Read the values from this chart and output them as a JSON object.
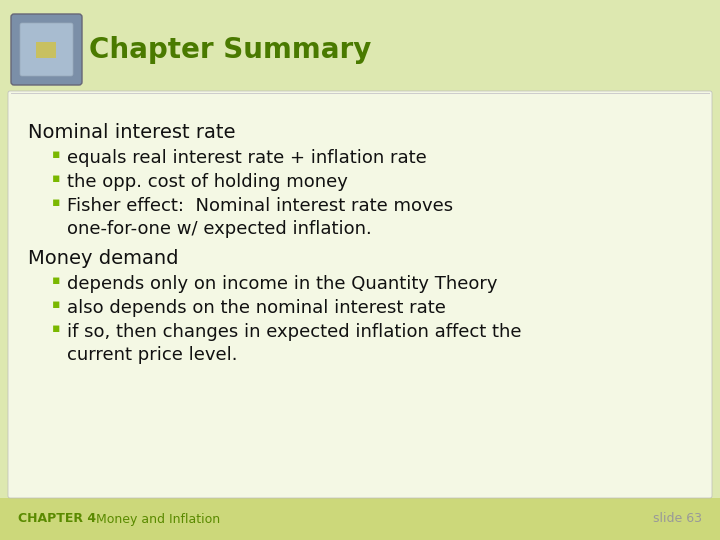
{
  "bg_color": "#dde8b0",
  "content_box_color": "#f4f8e4",
  "title_text": "Chapter Summary",
  "title_color": "#4a7a00",
  "title_fontsize": 20,
  "footer_bg_color": "#ccd87a",
  "footer_left_text": "CHAPTER 4   Money and Inflation",
  "footer_left_bold": "CHAPTER 4",
  "footer_left_color": "#5a8a00",
  "footer_right_text": "slide 63",
  "footer_right_color": "#999999",
  "bullet_color": "#7ab800",
  "content_color": "#111111",
  "section1_header": "Nominal interest rate",
  "section1_bullets": [
    "equals real interest rate + inflation rate",
    "the opp. cost of holding money",
    "Fisher effect:  Nominal interest rate moves\none-for-one w/ expected inflation."
  ],
  "section2_header": "Money demand",
  "section2_bullets": [
    "depends only on income in the Quantity Theory",
    "also depends on the nominal interest rate",
    "if so, then changes in expected inflation affect the\ncurrent price level."
  ],
  "bullet_fontsize": 13,
  "header_fontsize": 14,
  "footer_fontsize": 9,
  "icon_outer_color": "#7b8fa8",
  "icon_inner_color": "#a8bcd0",
  "icon_center_color": "#c8c060"
}
